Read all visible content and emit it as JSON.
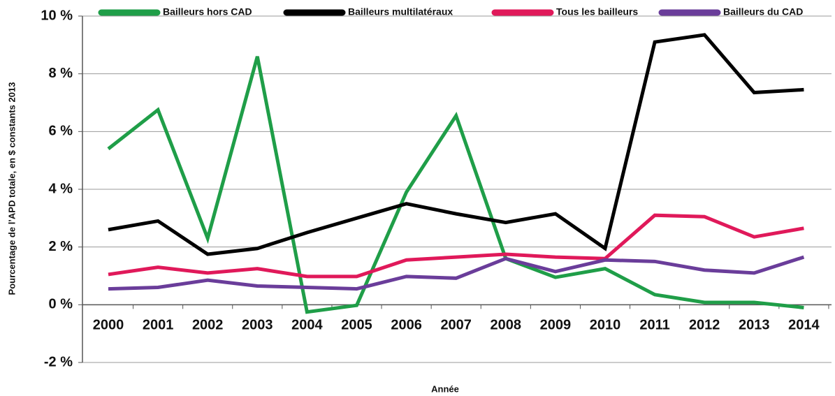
{
  "chart_data": {
    "type": "line",
    "x_label": "Année",
    "y_label": "Pourcentage de l’APD totale, en $ constants 2013",
    "categories": [
      "2000",
      "2001",
      "2002",
      "2003",
      "2004",
      "2005",
      "2006",
      "2007",
      "2008",
      "2009",
      "2010",
      "2011",
      "2012",
      "2013",
      "2014"
    ],
    "series": [
      {
        "name": "Bailleurs hors CAD",
        "color": "#1f9e48",
        "values": [
          5.4,
          6.75,
          2.3,
          8.6,
          -0.25,
          -0.02,
          3.9,
          6.55,
          1.6,
          0.95,
          1.25,
          0.35,
          0.08,
          0.08,
          -0.1
        ]
      },
      {
        "name": "Bailleurs multilatéraux",
        "color": "#000000",
        "values": [
          2.6,
          2.9,
          1.75,
          1.95,
          2.5,
          3.0,
          3.5,
          3.15,
          2.85,
          3.15,
          1.95,
          9.1,
          9.35,
          7.35,
          7.45
        ]
      },
      {
        "name": "Tous les bailleurs",
        "color": "#e0195a",
        "values": [
          1.05,
          1.3,
          1.1,
          1.25,
          0.98,
          0.98,
          1.55,
          1.65,
          1.75,
          1.65,
          1.6,
          3.1,
          3.05,
          2.35,
          2.65
        ]
      },
      {
        "name": "Bailleurs du CAD",
        "color": "#6a3d9a",
        "values": [
          0.55,
          0.6,
          0.85,
          0.65,
          0.6,
          0.55,
          0.98,
          0.92,
          1.6,
          1.15,
          1.55,
          1.5,
          1.2,
          1.1,
          1.65
        ]
      }
    ],
    "ylim": [
      -2,
      10
    ],
    "yticks": [
      {
        "value": -2,
        "label": "-2 %"
      },
      {
        "value": 0,
        "label": "0 %"
      },
      {
        "value": 2,
        "label": "2 %"
      },
      {
        "value": 4,
        "label": "4 %"
      },
      {
        "value": 6,
        "label": "6 %"
      },
      {
        "value": 8,
        "label": "8 %"
      },
      {
        "value": 10,
        "label": "10 %"
      }
    ],
    "grid": true,
    "legend": "top"
  }
}
